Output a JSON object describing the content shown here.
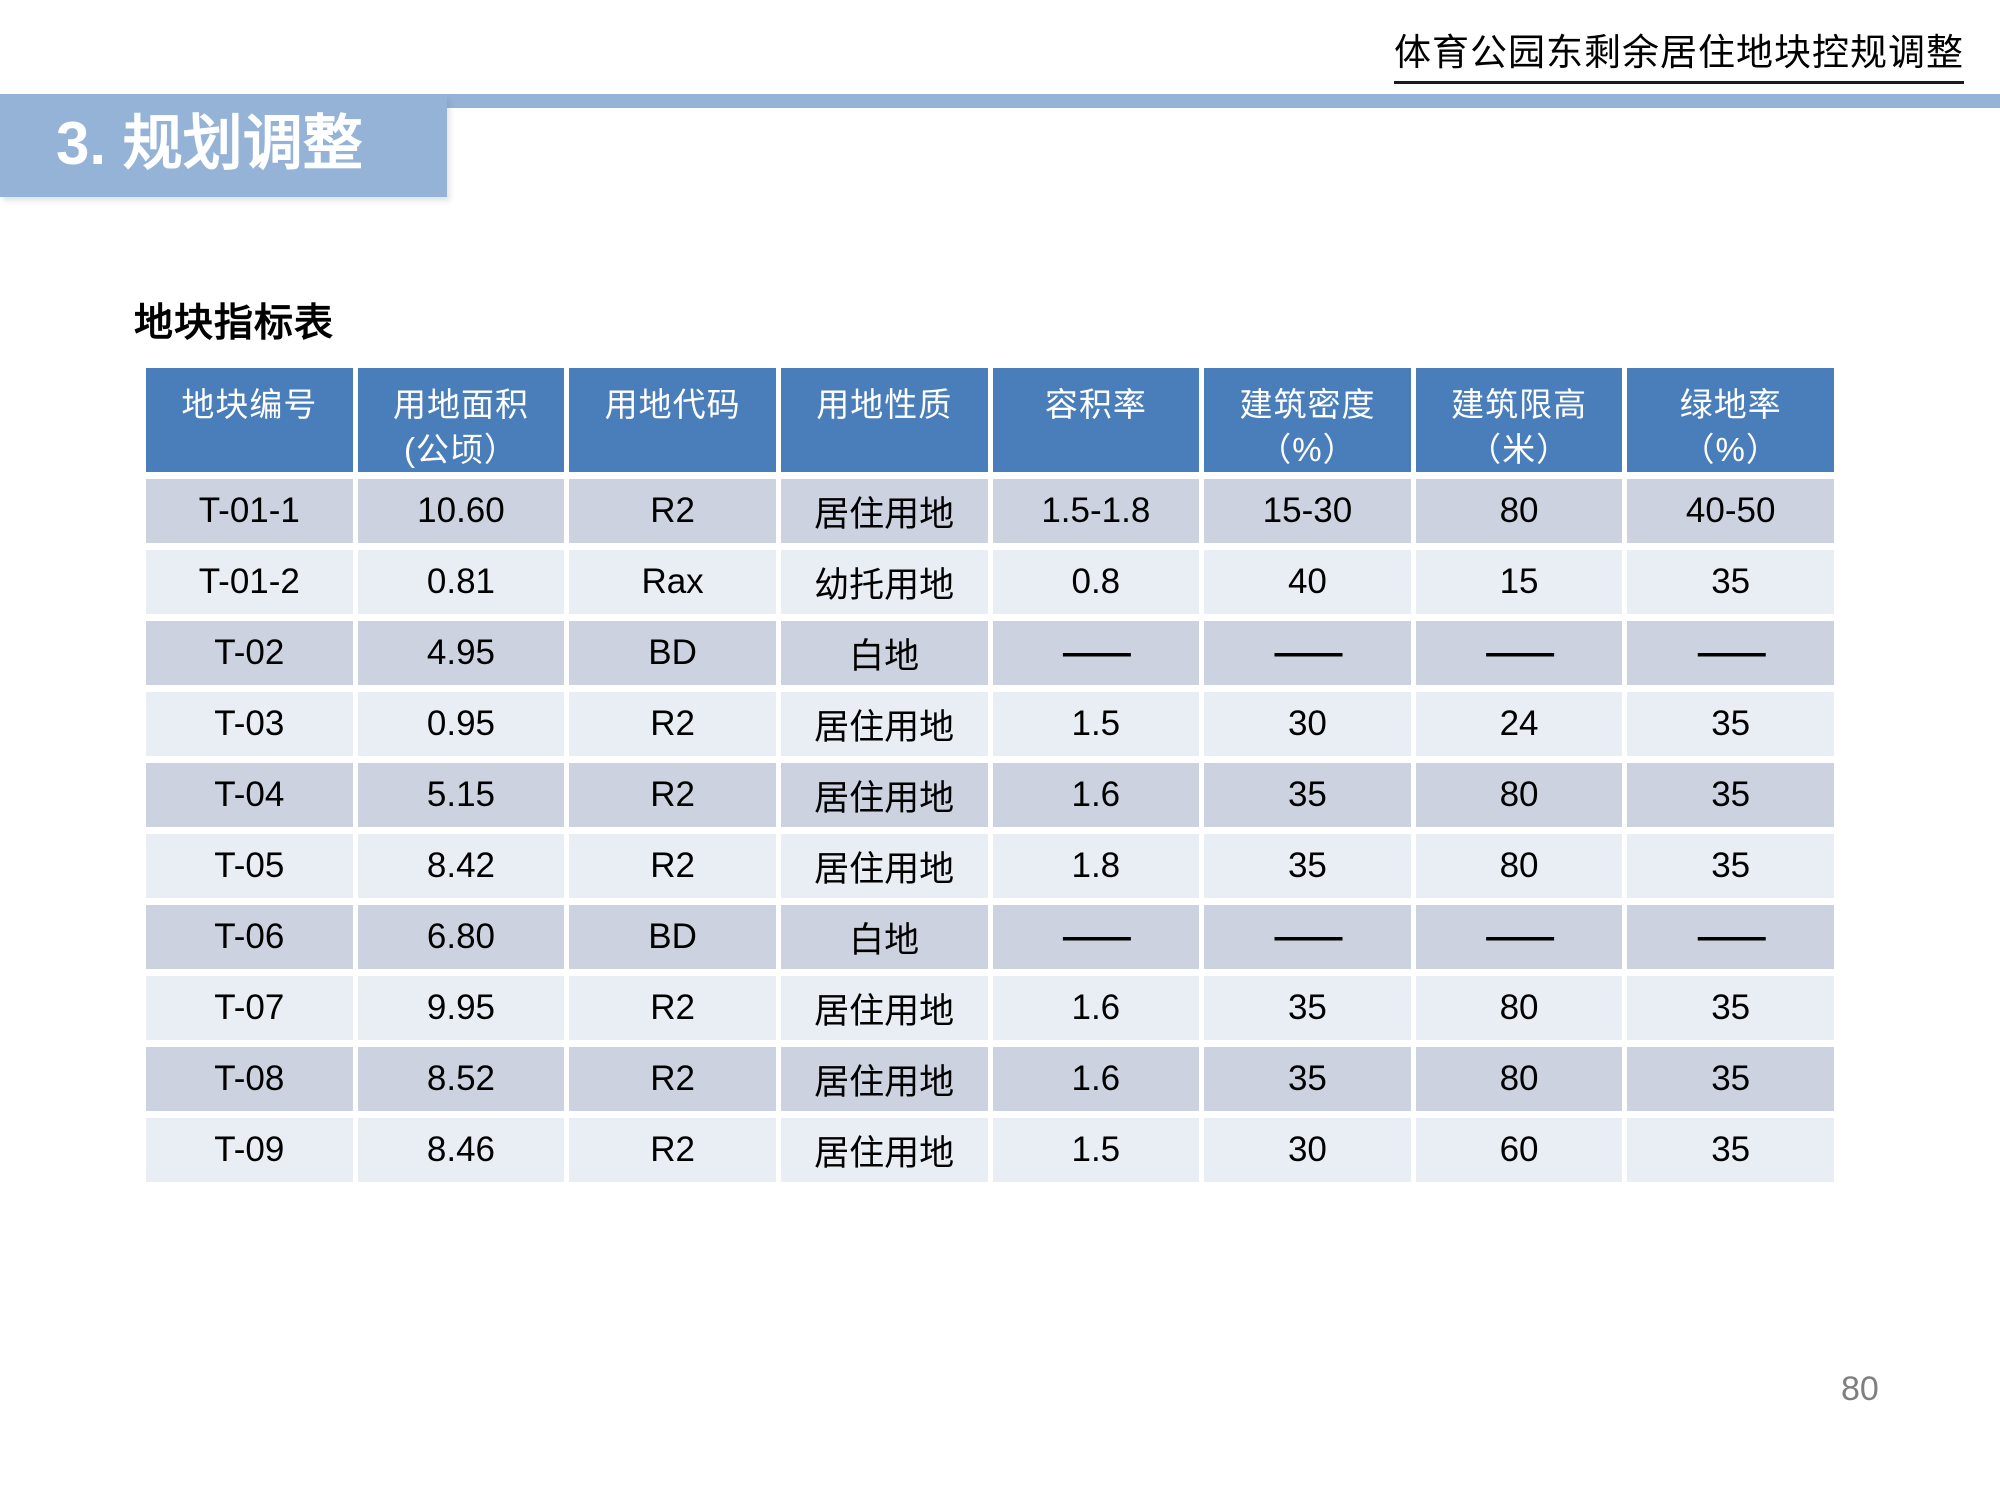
{
  "header": {
    "title": "体育公园东剩余居住地块控规调整"
  },
  "section_title": "3. 规划调整",
  "table_caption": "地块指标表",
  "page_number": "80",
  "colors": {
    "accent_light": "#95b3d7",
    "table_header_blue": "#4a7eba",
    "row_band_dark": "#cdd2e1",
    "row_band_light": "#e9edf4",
    "page_number_gray": "#7f7f7f"
  },
  "chart_data": {
    "type": "table",
    "title": "地块指标表",
    "columns": [
      [
        "地块编号"
      ],
      [
        "用地面积",
        "(公顷）"
      ],
      [
        "用地代码"
      ],
      [
        "用地性质"
      ],
      [
        "容积率"
      ],
      [
        "建筑密度",
        "（%）"
      ],
      [
        "建筑限高",
        "（米）"
      ],
      [
        "绿地率",
        "（%）"
      ]
    ],
    "rows": [
      [
        "T-01-1",
        "10.60",
        "R2",
        "居住用地",
        "1.5-1.8",
        "15-30",
        "80",
        "40-50"
      ],
      [
        "T-01-2",
        "0.81",
        "Rax",
        "幼托用地",
        "0.8",
        "40",
        "15",
        "35"
      ],
      [
        "T-02",
        "4.95",
        "BD",
        "白地",
        "——",
        "——",
        "——",
        "——"
      ],
      [
        "T-03",
        "0.95",
        "R2",
        "居住用地",
        "1.5",
        "30",
        "24",
        "35"
      ],
      [
        "T-04",
        "5.15",
        "R2",
        "居住用地",
        "1.6",
        "35",
        "80",
        "35"
      ],
      [
        "T-05",
        "8.42",
        "R2",
        "居住用地",
        "1.8",
        "35",
        "80",
        "35"
      ],
      [
        "T-06",
        "6.80",
        "BD",
        "白地",
        "——",
        "——",
        "——",
        "——"
      ],
      [
        "T-07",
        "9.95",
        "R2",
        "居住用地",
        "1.6",
        "35",
        "80",
        "35"
      ],
      [
        "T-08",
        "8.52",
        "R2",
        "居住用地",
        "1.6",
        "35",
        "80",
        "35"
      ],
      [
        "T-09",
        "8.46",
        "R2",
        "居住用地",
        "1.5",
        "30",
        "60",
        "35"
      ]
    ]
  }
}
